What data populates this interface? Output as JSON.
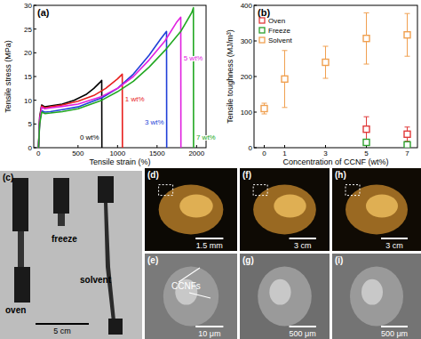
{
  "chart_data": [
    {
      "type": "line",
      "title": "(a)",
      "x_label": "Tensile strain (%)",
      "y_label": "Tensile stress (MPa)",
      "xlim": [
        -60,
        2120
      ],
      "ylim": [
        0,
        30
      ],
      "xticks": [
        0,
        500,
        1000,
        1500,
        2000
      ],
      "yticks": [
        0,
        5,
        10,
        15,
        20,
        25,
        30
      ],
      "series": [
        {
          "name": "0 wt%",
          "color": "#000000",
          "x": [
            0,
            15,
            40,
            80,
            150,
            300,
            450,
            600,
            700,
            780,
            800,
            802
          ],
          "values": [
            0,
            6.5,
            9,
            8.6,
            8.8,
            9.2,
            10,
            11.2,
            12.5,
            13.8,
            14.2,
            0
          ]
        },
        {
          "name": "1 wt%",
          "color": "#e8201e",
          "x": [
            0,
            15,
            40,
            80,
            150,
            300,
            500,
            700,
            850,
            1000,
            1060,
            1062
          ],
          "values": [
            0,
            6,
            8.8,
            8.4,
            8.6,
            9,
            9.8,
            11,
            12.5,
            14.5,
            15.5,
            0
          ]
        },
        {
          "name": "3 wt%",
          "color": "#1f3fd8",
          "x": [
            0,
            15,
            40,
            80,
            150,
            300,
            500,
            800,
            1000,
            1200,
            1400,
            1550,
            1620,
            1622
          ],
          "values": [
            0,
            5.5,
            7.8,
            7.5,
            7.6,
            8,
            8.6,
            10.5,
            12.5,
            15.5,
            19.5,
            23,
            24.5,
            0
          ]
        },
        {
          "name": "5 wt%",
          "color": "#e020e0",
          "x": [
            0,
            15,
            40,
            80,
            150,
            300,
            500,
            800,
            1000,
            1200,
            1400,
            1600,
            1750,
            1800,
            1802
          ],
          "values": [
            0,
            6,
            8.5,
            8.2,
            8.4,
            8.7,
            9.2,
            10.8,
            12.5,
            15,
            18.5,
            22.5,
            26.5,
            27.5,
            0
          ]
        },
        {
          "name": "7 wt%",
          "color": "#22a822",
          "x": [
            0,
            15,
            40,
            80,
            150,
            300,
            500,
            800,
            1000,
            1200,
            1400,
            1600,
            1800,
            1940,
            1960,
            1962
          ],
          "values": [
            0,
            5,
            7.5,
            7.2,
            7.3,
            7.6,
            8.2,
            10,
            11.8,
            14,
            17,
            20.5,
            24.5,
            28.5,
            29.5,
            0
          ]
        }
      ]
    },
    {
      "type": "scatter",
      "title": "(b)",
      "x_label": "Concentration of CCNF (wt%)",
      "y_label": "Tensile toughness (MJ/m³)",
      "xlim": [
        -0.5,
        7.5
      ],
      "ylim": [
        0,
        400
      ],
      "xticks": [
        0,
        1,
        3,
        5,
        7
      ],
      "yticks": [
        0,
        100,
        200,
        300,
        400
      ],
      "legend": "upper left",
      "series": [
        {
          "name": "Oven",
          "color": "#e03a3a",
          "marker": "square",
          "x": [
            5,
            7
          ],
          "values": [
            52,
            38
          ],
          "errors": [
            35,
            20
          ]
        },
        {
          "name": "Freeze",
          "color": "#2ca02c",
          "marker": "square",
          "x": [
            5,
            7
          ],
          "values": [
            15,
            8
          ],
          "errors": [
            4,
            3
          ]
        },
        {
          "name": "Solvent",
          "color": "#f0a050",
          "marker": "square",
          "x": [
            0,
            1,
            3,
            5,
            7
          ],
          "values": [
            110,
            193,
            240,
            307,
            317
          ],
          "errors": [
            15,
            80,
            45,
            72,
            60
          ]
        }
      ]
    }
  ],
  "images": [
    {
      "title": "(c)",
      "labels": [
        "freeze",
        "oven",
        "solvent"
      ],
      "scale_bar": "5 cm"
    },
    {
      "title": "(d)",
      "scale_bar": "1.5 mm"
    },
    {
      "title": "(e)",
      "labels": [
        "CCNFs"
      ],
      "scale_bar": "10 μm"
    },
    {
      "title": "(f)",
      "scale_bar": "3 cm"
    },
    {
      "title": "(g)",
      "scale_bar": "500 μm"
    },
    {
      "title": "(h)",
      "scale_bar": "3 cm"
    },
    {
      "title": "(i)",
      "scale_bar": "500 μm"
    }
  ]
}
